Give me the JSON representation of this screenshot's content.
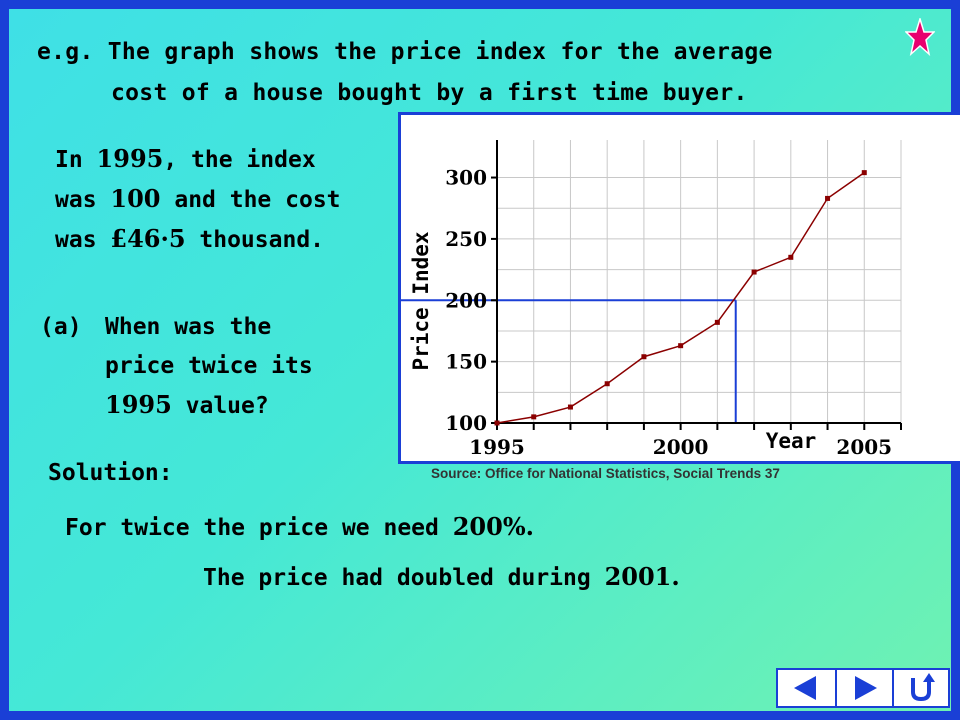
{
  "header": {
    "line1": "e.g. The graph shows the price index for the average",
    "line2": "cost of a house bought by a first time buyer."
  },
  "intro": {
    "l1a": "In ",
    "l1b": "1995",
    "l1c": ", the index",
    "l2a": "was ",
    "l2b": "100",
    "l2c": " and the cost",
    "l3a": "was ",
    "l3b": "£46·5",
    "l3c": " thousand."
  },
  "question": {
    "label": "(a)",
    "l1": "When was the",
    "l2": "price twice its",
    "l3a": "1995",
    "l3b": " value?"
  },
  "solution": {
    "heading": "Solution:",
    "line1a": "For twice the price we need ",
    "line1b": "200%.",
    "line2a": "The price had doubled during ",
    "line2b": "2001."
  },
  "source": "Source: Office for National Statistics, Social Trends 37",
  "colors": {
    "frame": "#1a3fd6",
    "series": "#8b0000",
    "guide": "#1a3fd6",
    "star": "#e8006e"
  },
  "chart_data": {
    "type": "line",
    "x": [
      1995,
      1996,
      1997,
      1998,
      1999,
      2000,
      2001,
      2002,
      2003,
      2004,
      2005
    ],
    "series": [
      {
        "values": [
          100,
          105,
          113,
          132,
          154,
          163,
          182,
          223,
          235,
          283,
          304
        ]
      }
    ],
    "xlabel": "Year",
    "ylabel": "Price Index",
    "xticks": [
      1995,
      2000,
      2005
    ],
    "yticks": [
      100,
      150,
      200,
      250,
      300
    ],
    "xlim": [
      1995,
      2006
    ],
    "ylim": [
      100,
      320
    ],
    "grid": true,
    "annotation": {
      "y": 200,
      "x": 2001.5
    }
  }
}
